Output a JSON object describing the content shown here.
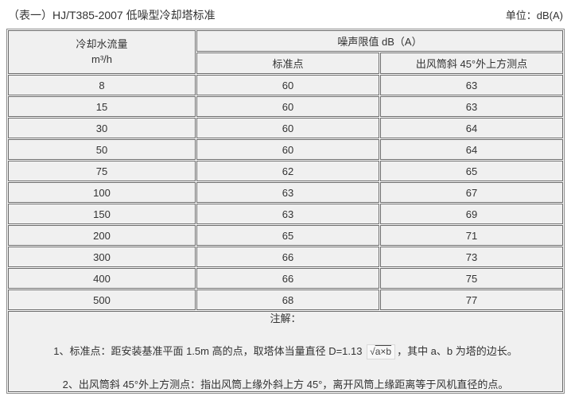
{
  "page": {
    "title": "（表一）HJ/T385-2007 低噪型冷却塔标准",
    "unit_label": "单位：dB(A)"
  },
  "table": {
    "flow_header_line1": "冷却水流量",
    "flow_header_line2": "m³/h",
    "span_header": "噪声限值 dB（A）",
    "sub_headers": {
      "standard": "标准点",
      "outlet": "出风筒斜 45°外上方测点"
    },
    "rows": [
      {
        "flow": "8",
        "standard": "60",
        "outlet": "63"
      },
      {
        "flow": "15",
        "standard": "60",
        "outlet": "63"
      },
      {
        "flow": "30",
        "standard": "60",
        "outlet": "64"
      },
      {
        "flow": "50",
        "standard": "60",
        "outlet": "64"
      },
      {
        "flow": "75",
        "standard": "62",
        "outlet": "65"
      },
      {
        "flow": "100",
        "standard": "63",
        "outlet": "67"
      },
      {
        "flow": "150",
        "standard": "63",
        "outlet": "69"
      },
      {
        "flow": "200",
        "standard": "65",
        "outlet": "71"
      },
      {
        "flow": "300",
        "standard": "66",
        "outlet": "73"
      },
      {
        "flow": "400",
        "standard": "66",
        "outlet": "75"
      },
      {
        "flow": "500",
        "standard": "68",
        "outlet": "77"
      }
    ]
  },
  "notes": {
    "heading": "注解：",
    "note1_prefix": "1、标准点：距安装基准平面 1.5m 高的点，取塔体当量直径 D=1.13",
    "note1_sqrt_symbol": "√",
    "note1_radicand": "a×b",
    "note1_suffix": "，其中 a、b 为塔的边长。",
    "note2": "2、出风筒斜 45°外上方测点：指出风筒上缘外斜上方 45°，离开风筒上缘距离等于风机直径的点。"
  },
  "colors": {
    "cell_background": "#f0f0f0",
    "border": "#6b6b6b",
    "text": "#333333",
    "page_background": "#ffffff"
  }
}
